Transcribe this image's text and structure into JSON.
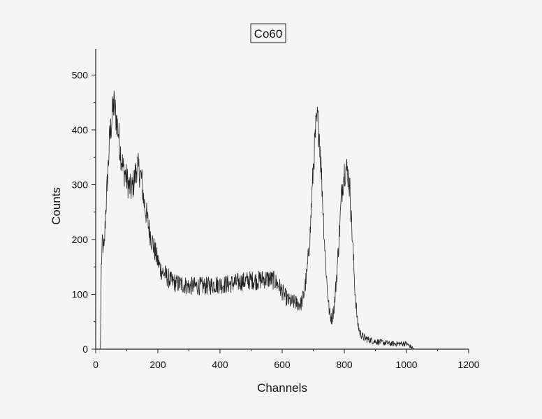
{
  "chart_data": {
    "type": "line",
    "title": "Co60",
    "xlabel": "Channels",
    "ylabel": "Counts",
    "xlim": [
      0,
      1200
    ],
    "ylim": [
      0,
      550
    ],
    "xticks": [
      0,
      200,
      400,
      600,
      800,
      1000,
      1200
    ],
    "yticks": [
      0,
      100,
      200,
      300,
      400,
      500
    ],
    "grid": false,
    "legend": "none",
    "series": [
      {
        "x": [
          15,
          18,
          22,
          27,
          32,
          38,
          45,
          52,
          58,
          65,
          72,
          80,
          88,
          95,
          105,
          115,
          125,
          133,
          140,
          148,
          155,
          162,
          170,
          180,
          190,
          200,
          210,
          225,
          240,
          260,
          280,
          300,
          320,
          340,
          360,
          380,
          400,
          420,
          440,
          460,
          480,
          500,
          520,
          540,
          560,
          575,
          590,
          605,
          620,
          640,
          660,
          670,
          680,
          690,
          700,
          708,
          714,
          720,
          728,
          736,
          744,
          752,
          760,
          768,
          776,
          784,
          792,
          800,
          806,
          812,
          818,
          826,
          834,
          842,
          850,
          860,
          875,
          900,
          925,
          950,
          975,
          1000,
          1025
        ],
        "y": [
          0,
          150,
          200,
          175,
          250,
          310,
          385,
          420,
          450,
          425,
          400,
          360,
          330,
          320,
          300,
          290,
          310,
          335,
          325,
          310,
          270,
          250,
          225,
          200,
          180,
          160,
          145,
          135,
          125,
          120,
          118,
          115,
          115,
          115,
          115,
          118,
          118,
          118,
          120,
          122,
          124,
          126,
          125,
          128,
          128,
          125,
          115,
          100,
          88,
          85,
          82,
          100,
          140,
          210,
          330,
          400,
          420,
          390,
          300,
          200,
          120,
          65,
          55,
          80,
          140,
          210,
          290,
          325,
          330,
          320,
          290,
          200,
          110,
          50,
          30,
          22,
          18,
          14,
          12,
          10,
          10,
          10,
          0
        ]
      }
    ]
  }
}
